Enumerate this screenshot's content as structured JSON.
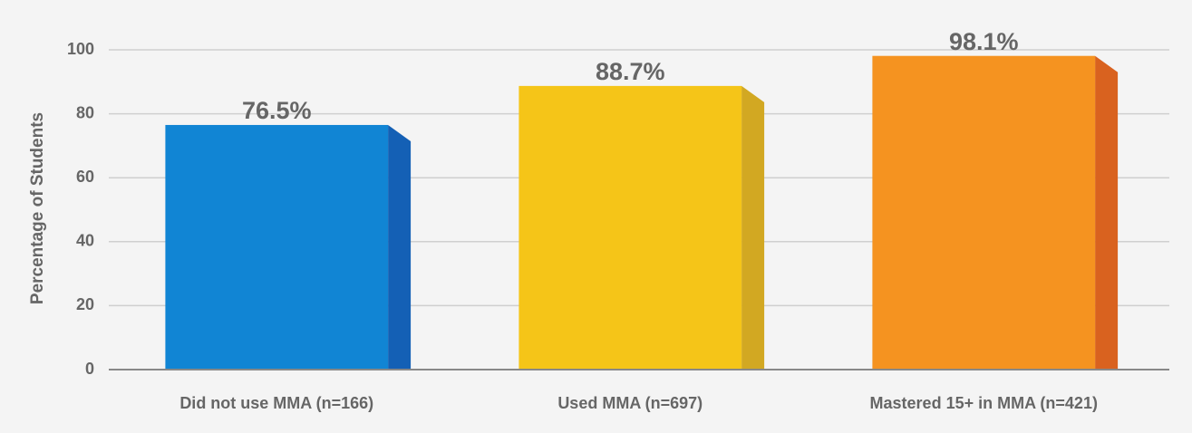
{
  "chart_data": {
    "type": "bar3d",
    "y_label": "Percentage of Students",
    "categories": [
      "Did not use MMA (n=166)",
      "Used MMA (n=697)",
      "Mastered 15+ in MMA (n=421)"
    ],
    "values": [
      76.5,
      88.7,
      98.1
    ],
    "value_labels": [
      "76.5%",
      "88.7%",
      "98.1%"
    ],
    "colors": [
      "#1185d4",
      "#f5c518",
      "#f59320"
    ],
    "side_colors": [
      "#1460b5",
      "#d2a822",
      "#d9621f"
    ],
    "ylim": [
      0,
      100
    ],
    "yticks": [
      0,
      20,
      40,
      60,
      80,
      100
    ],
    "grid": true
  }
}
